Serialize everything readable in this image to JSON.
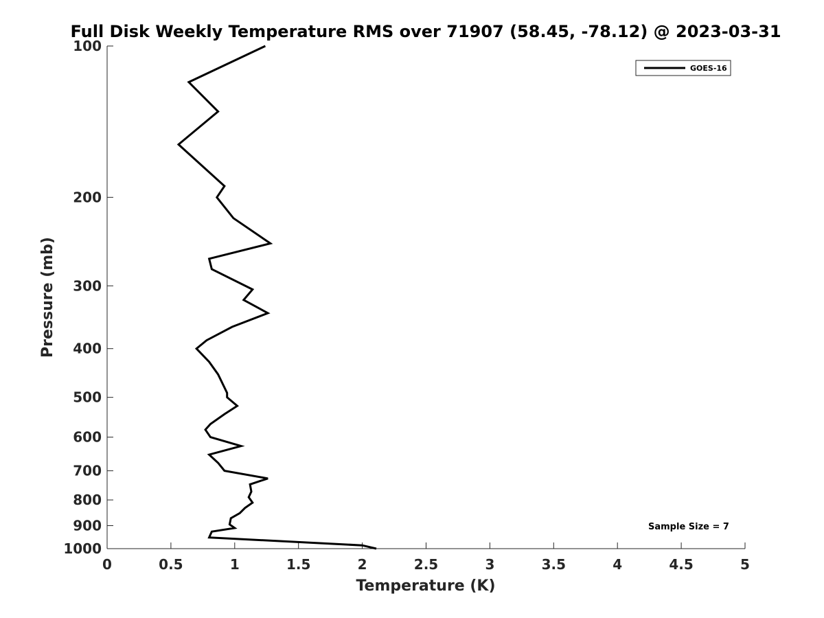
{
  "chart_data": {
    "type": "line",
    "title": "Full Disk Weekly Temperature RMS over 71907 (58.45, -78.12) @ 2023-03-31",
    "xlabel": "Temperature (K)",
    "ylabel": "Pressure (mb)",
    "xlim": [
      0,
      5
    ],
    "ylim": [
      100,
      1000
    ],
    "y_scale": "log",
    "y_reversed": true,
    "xticks": [
      0,
      0.5,
      1,
      1.5,
      2,
      2.5,
      3,
      3.5,
      4,
      4.5,
      5
    ],
    "xtick_labels": [
      "0",
      "0.5",
      "1",
      "1.5",
      "2",
      "2.5",
      "3",
      "3.5",
      "4",
      "4.5",
      "5"
    ],
    "yticks": [
      100,
      200,
      300,
      400,
      500,
      600,
      700,
      800,
      900,
      1000
    ],
    "ytick_labels": [
      "100",
      "200",
      "300",
      "400",
      "500",
      "600",
      "700",
      "800",
      "900",
      "1000"
    ],
    "grid": false,
    "legend_position": "top-right",
    "annotation": "Sample Size = 7",
    "series": [
      {
        "name": "GOES-16",
        "color": "#000000",
        "x": [
          1.24,
          0.64,
          0.87,
          0.56,
          0.92,
          0.86,
          0.99,
          1.28,
          0.8,
          0.82,
          1.14,
          1.07,
          1.26,
          0.98,
          0.78,
          0.7,
          0.8,
          0.87,
          0.94,
          0.94,
          1.02,
          0.92,
          0.81,
          0.77,
          0.81,
          1.05,
          0.8,
          0.87,
          0.9,
          0.92,
          1.26,
          1.12,
          1.13,
          1.11,
          1.14,
          1.08,
          1.04,
          0.97,
          0.96,
          1.0,
          0.82,
          0.8,
          2.0,
          2.11
        ],
        "y": [
          100,
          118,
          135,
          157,
          190,
          200,
          220,
          247,
          265,
          278,
          305,
          320,
          340,
          362,
          385,
          400,
          425,
          450,
          490,
          500,
          520,
          540,
          565,
          580,
          600,
          625,
          650,
          675,
          690,
          700,
          725,
          745,
          770,
          790,
          810,
          830,
          850,
          870,
          895,
          910,
          925,
          950,
          985,
          1000
        ]
      }
    ]
  }
}
